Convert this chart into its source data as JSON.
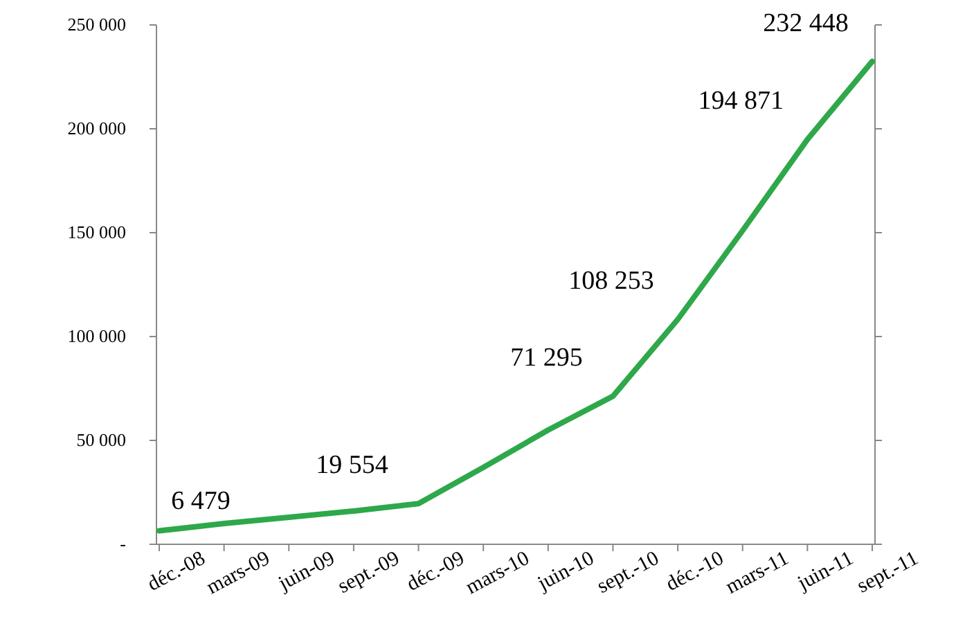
{
  "chart_data": {
    "type": "line",
    "categories": [
      "déc.-08",
      "mars-09",
      "juin-09",
      "sept.-09",
      "déc.-09",
      "mars-10",
      "juin-10",
      "sept.-10",
      "déc.-10",
      "mars-11",
      "juin-11",
      "sept.-11"
    ],
    "series": [
      {
        "color": "#2ea84a",
        "values": [
          6479,
          10000,
          13000,
          16000,
          19554,
          37000,
          55000,
          71295,
          108253,
          151000,
          194871,
          232448
        ],
        "value_labels": [
          "6 479",
          null,
          null,
          null,
          "19 554",
          null,
          null,
          "71 295",
          "108 253",
          null,
          "194 871",
          "232 448"
        ]
      }
    ],
    "ylim": [
      0,
      250000
    ],
    "yticks": [
      {
        "value": 0,
        "label": "-"
      },
      {
        "value": 50000,
        "label": "50 000"
      },
      {
        "value": 100000,
        "label": "100 000"
      },
      {
        "value": 150000,
        "label": "150 000"
      },
      {
        "value": 200000,
        "label": "200 000"
      },
      {
        "value": 250000,
        "label": "250 000"
      }
    ],
    "grid": false,
    "marker": "none",
    "line_style": "solid"
  }
}
